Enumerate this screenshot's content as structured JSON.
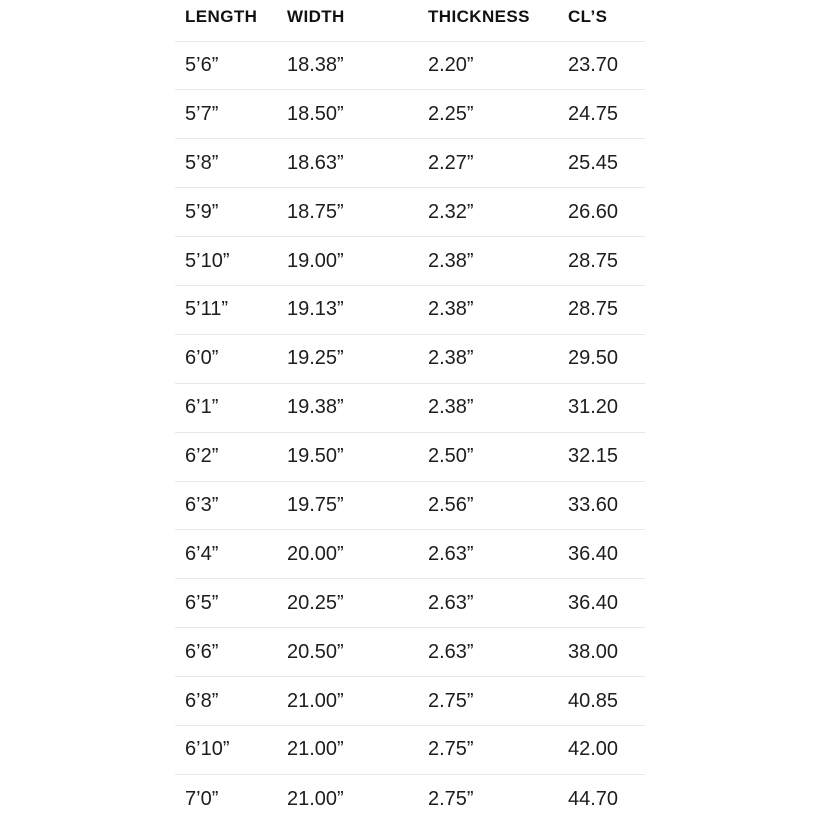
{
  "chart_data": {
    "type": "table",
    "columns": [
      "LENGTH",
      "WIDTH",
      "THICKNESS",
      "CL’S"
    ],
    "rows": [
      [
        "5’6”",
        "18.38”",
        "2.20”",
        "23.70"
      ],
      [
        "5’7”",
        "18.50”",
        "2.25”",
        "24.75"
      ],
      [
        "5’8”",
        "18.63”",
        "2.27”",
        "25.45"
      ],
      [
        "5’9”",
        "18.75”",
        "2.32”",
        "26.60"
      ],
      [
        "5’10”",
        "19.00”",
        "2.38”",
        "28.75"
      ],
      [
        "5’11”",
        "19.13”",
        "2.38”",
        "28.75"
      ],
      [
        "6’0”",
        "19.25”",
        "2.38”",
        "29.50"
      ],
      [
        "6’1”",
        "19.38”",
        "2.38”",
        "31.20"
      ],
      [
        "6’2”",
        "19.50”",
        "2.50”",
        "32.15"
      ],
      [
        "6’3”",
        "19.75”",
        "2.56”",
        "33.60"
      ],
      [
        "6’4”",
        "20.00”",
        "2.63”",
        "36.40"
      ],
      [
        "6’5”",
        "20.25”",
        "2.63”",
        "36.40"
      ],
      [
        "6’6”",
        "20.50”",
        "2.63”",
        "38.00"
      ],
      [
        "6’8”",
        "21.00”",
        "2.75”",
        "40.85"
      ],
      [
        "6’10”",
        "21.00”",
        "2.75”",
        "42.00"
      ],
      [
        "7’0”",
        "21.00”",
        "2.75”",
        "44.70"
      ]
    ],
    "layout": {
      "grid": "horizontal-dividers-only",
      "header_style": "bold-uppercase",
      "alignment": "left"
    }
  },
  "colors": {
    "background": "#ffffff",
    "text": "#1d1d1d",
    "header_text": "#111111",
    "divider": "#e8e8e8"
  }
}
